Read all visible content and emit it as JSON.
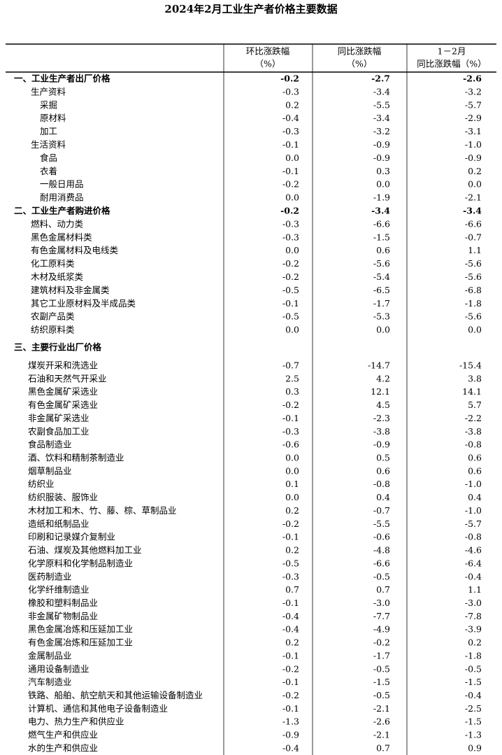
{
  "title": "2024年2月工业生产者价格主要数据",
  "header": [
    [
      "环比涨跌幅",
      "（%）"
    ],
    [
      "同比涨跌幅",
      "（%）"
    ],
    [
      "1－2月",
      "同比涨跌幅（%）"
    ]
  ],
  "sections": [
    {
      "label": "一、工业生产者出厂价格",
      "values": [
        "-0.2",
        "-2.7",
        "-2.6"
      ],
      "groups": [
        {
          "label": "生产资料",
          "values": [
            "-0.3",
            "-3.4",
            "-3.2"
          ],
          "items": [
            {
              "label": "采掘",
              "values": [
                "0.2",
                "-5.5",
                "-5.7"
              ]
            },
            {
              "label": "原材料",
              "values": [
                "-0.4",
                "-3.4",
                "-2.9"
              ]
            },
            {
              "label": "加工",
              "values": [
                "-0.3",
                "-3.2",
                "-3.1"
              ]
            }
          ]
        },
        {
          "label": "生活资料",
          "values": [
            "-0.1",
            "-0.9",
            "-1.0"
          ],
          "items": [
            {
              "label": "食品",
              "values": [
                "0.0",
                "-0.9",
                "-0.9"
              ]
            },
            {
              "label": "衣着",
              "values": [
                "-0.1",
                "0.3",
                "0.2"
              ]
            },
            {
              "label": "一般日用品",
              "values": [
                "-0.2",
                "0.0",
                "0.0"
              ]
            },
            {
              "label": "耐用消费品",
              "values": [
                "0.0",
                "-1.9",
                "-2.1"
              ]
            }
          ]
        }
      ]
    },
    {
      "label": "二、工业生产者购进价格",
      "values": [
        "-0.2",
        "-3.4",
        "-3.4"
      ],
      "groups": [
        {
          "label": "燃料、动力类",
          "values": [
            "-0.3",
            "-6.6",
            "-6.6"
          ]
        },
        {
          "label": "黑色金属材料类",
          "values": [
            "-0.3",
            "-1.5",
            "-0.7"
          ]
        },
        {
          "label": "有色金属材料及电线类",
          "values": [
            "0.0",
            "0.6",
            "1.1"
          ]
        },
        {
          "label": "化工原料类",
          "values": [
            "-0.2",
            "-5.6",
            "-5.6"
          ]
        },
        {
          "label": "木材及纸浆类",
          "values": [
            "-0.2",
            "-5.4",
            "-5.6"
          ]
        },
        {
          "label": "建筑材料及非金属类",
          "values": [
            "-0.5",
            "-6.5",
            "-6.8"
          ]
        },
        {
          "label": "其它工业原材料及半成品类",
          "values": [
            "-0.1",
            "-1.7",
            "-1.8"
          ]
        },
        {
          "label": "农副产品类",
          "values": [
            "-0.5",
            "-5.3",
            "-5.6"
          ]
        },
        {
          "label": "纺织原料类",
          "values": [
            "0.0",
            "0.0",
            "0.0"
          ]
        }
      ]
    },
    {
      "label": "三、主要行业出厂价格",
      "groups": [
        {
          "label": "煤炭开采和洗选业",
          "values": [
            "-0.7",
            "-14.7",
            "-15.4"
          ]
        },
        {
          "label": "石油和天然气开采业",
          "values": [
            "2.5",
            "4.2",
            "3.8"
          ]
        },
        {
          "label": "黑色金属矿采选业",
          "values": [
            "0.3",
            "12.1",
            "14.1"
          ]
        },
        {
          "label": "有色金属矿采选业",
          "values": [
            "-0.2",
            "4.5",
            "5.7"
          ]
        },
        {
          "label": "非金属矿采选业",
          "values": [
            "-0.1",
            "-2.3",
            "-2.2"
          ]
        },
        {
          "label": "农副食品加工业",
          "values": [
            "-0.3",
            "-3.8",
            "-3.8"
          ]
        },
        {
          "label": "食品制造业",
          "values": [
            "-0.6",
            "-0.9",
            "-0.8"
          ]
        },
        {
          "label": "酒、饮料和精制茶制造业",
          "values": [
            "0.0",
            "0.5",
            "0.6"
          ]
        },
        {
          "label": "烟草制品业",
          "values": [
            "0.0",
            "0.6",
            "0.6"
          ]
        },
        {
          "label": "纺织业",
          "values": [
            "0.1",
            "-0.8",
            "-1.0"
          ]
        },
        {
          "label": "纺织服装、服饰业",
          "values": [
            "0.0",
            "0.4",
            "0.4"
          ]
        },
        {
          "label": "木材加工和木、竹、藤、棕、草制品业",
          "values": [
            "0.2",
            "-0.7",
            "-1.0"
          ]
        },
        {
          "label": "造纸和纸制品业",
          "values": [
            "-0.2",
            "-5.5",
            "-5.7"
          ]
        },
        {
          "label": "印刷和记录媒介复制业",
          "values": [
            "-0.1",
            "-0.6",
            "-0.8"
          ]
        },
        {
          "label": "石油、煤炭及其他燃料加工业",
          "values": [
            "0.2",
            "-4.8",
            "-4.6"
          ]
        },
        {
          "label": "化学原料和化学制品制造业",
          "values": [
            "-0.5",
            "-6.6",
            "-6.4"
          ]
        },
        {
          "label": "医药制造业",
          "values": [
            "-0.3",
            "-0.5",
            "-0.4"
          ]
        },
        {
          "label": "化学纤维制造业",
          "values": [
            "0.7",
            "0.7",
            "1.1"
          ]
        },
        {
          "label": "橡胶和塑料制品业",
          "values": [
            "-0.1",
            "-3.0",
            "-3.0"
          ]
        },
        {
          "label": "非金属矿物制品业",
          "values": [
            "-0.4",
            "-7.7",
            "-7.8"
          ]
        },
        {
          "label": "黑色金属冶炼和压延加工业",
          "values": [
            "-0.4",
            "-4.9",
            "-3.9"
          ]
        },
        {
          "label": "有色金属冶炼和压延加工业",
          "values": [
            "0.2",
            "-0.2",
            "0.2"
          ]
        },
        {
          "label": "金属制品业",
          "values": [
            "-0.1",
            "-1.7",
            "-1.8"
          ]
        },
        {
          "label": "通用设备制造业",
          "values": [
            "-0.2",
            "-0.5",
            "-0.5"
          ]
        },
        {
          "label": "汽车制造业",
          "values": [
            "-0.1",
            "-1.5",
            "-1.5"
          ]
        },
        {
          "label": "铁路、船舶、航空航天和其他运输设备制造业",
          "values": [
            "-0.2",
            "-0.5",
            "-0.4"
          ]
        },
        {
          "label": "计算机、通信和其他电子设备制造业",
          "values": [
            "-0.1",
            "-2.1",
            "-2.5"
          ]
        },
        {
          "label": "电力、热力生产和供应业",
          "values": [
            "-1.3",
            "-2.6",
            "-1.5"
          ]
        },
        {
          "label": "燃气生产和供应业",
          "values": [
            "-0.9",
            "-2.1",
            "-1.3"
          ]
        },
        {
          "label": "水的生产和供应业",
          "values": [
            "-0.4",
            "0.7",
            "0.9"
          ]
        }
      ]
    }
  ]
}
